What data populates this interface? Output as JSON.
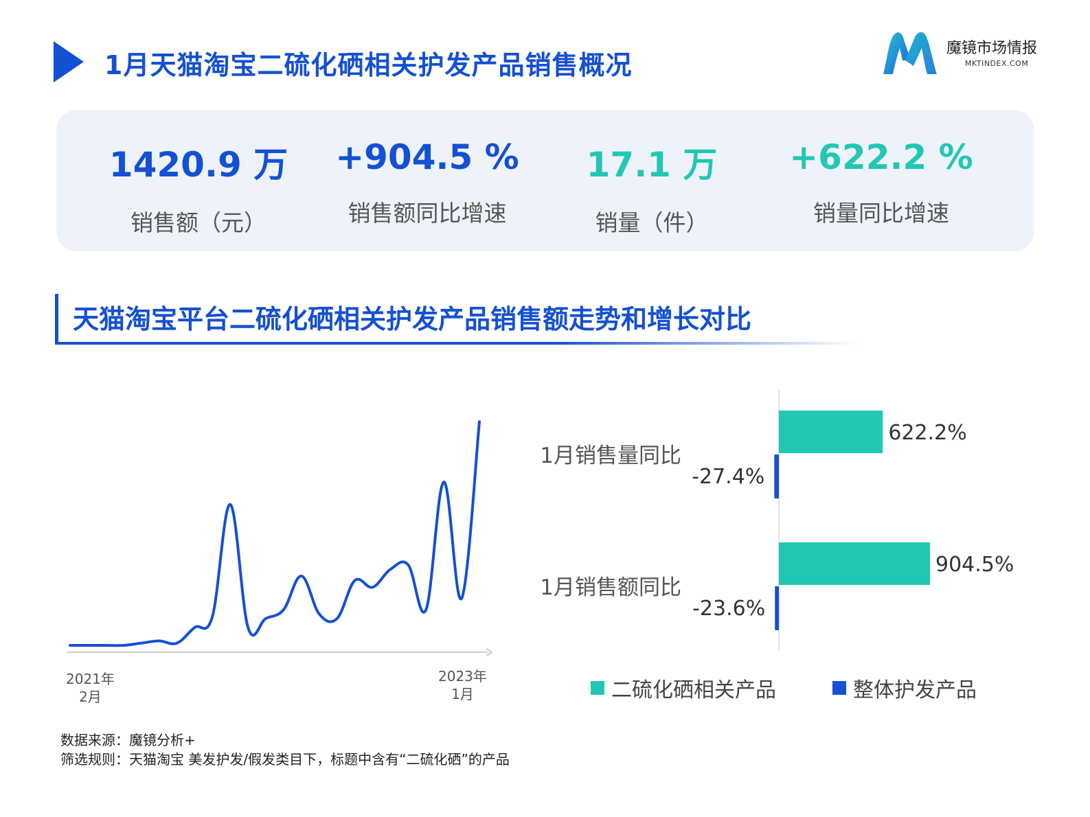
{
  "header": {
    "title": "1月天猫淘宝二硫化硒相关护发产品销售概况",
    "brand_name": "魔镜市场情报",
    "brand_domain": "MKTINDEX.COM"
  },
  "kpis": [
    {
      "value": "1420.9 万",
      "label": "销售额（元）",
      "color": "#1450d4"
    },
    {
      "value": "+904.5 %",
      "label": "销售额同比增速",
      "color": "#1450d4"
    },
    {
      "value": "17.1 万",
      "label": "销量（件）",
      "color": "#22c7b4"
    },
    {
      "value": "+622.2 %",
      "label": "销量同比增速",
      "color": "#22c7b4"
    }
  ],
  "section": {
    "title": "天猫淘宝平台二硫化硒相关护发产品销售额走势和增长对比"
  },
  "colors": {
    "primary": "#1450d4",
    "teal": "#22c7b4",
    "kpi_bg": "#eef3fb"
  },
  "chart_data": [
    {
      "type": "line",
      "title": "",
      "x_start_label": [
        "2021年",
        "2月"
      ],
      "x_end_label": [
        "2023年",
        "1月"
      ],
      "x": [
        "2021-02",
        "2021-03",
        "2021-04",
        "2021-05",
        "2021-06",
        "2021-07",
        "2021-08",
        "2021-09",
        "2021-10",
        "2021-11",
        "2021-12",
        "2022-01",
        "2022-02",
        "2022-03",
        "2022-04",
        "2022-05",
        "2022-06",
        "2022-07",
        "2022-08",
        "2022-09",
        "2022-10",
        "2022-11",
        "2022-12",
        "2023-01"
      ],
      "series": [
        {
          "name": "",
          "color": "#1450d4",
          "values": [
            0.0,
            0.0,
            0.0,
            0.0,
            0.1,
            0.2,
            0.1,
            0.8,
            1.3,
            6.3,
            0.8,
            1.2,
            1.6,
            3.1,
            1.4,
            1.2,
            2.9,
            2.6,
            3.4,
            3.6,
            1.6,
            7.3,
            2.1,
            10.0
          ]
        }
      ],
      "ylim": [
        0,
        10.5
      ],
      "grid": false,
      "y_axis_shown": false
    },
    {
      "type": "bar",
      "orientation": "horizontal",
      "categories": [
        "1月销售量同比",
        "1月销售额同比"
      ],
      "series": [
        {
          "name": "二硫化硒相关产品",
          "color": "#22c7b4",
          "values": [
            622.2,
            904.5
          ],
          "labels": [
            "622.2%",
            "904.5%"
          ]
        },
        {
          "name": "整体护发产品",
          "color": "#1450d4",
          "values": [
            -27.4,
            -23.6
          ],
          "labels": [
            "-27.4%",
            "-23.6%"
          ]
        }
      ],
      "xlim": [
        -30,
        1000
      ],
      "legend_position": "bottom"
    }
  ],
  "footnotes": {
    "source": "数据来源：魔镜分析+",
    "filter": "筛选规则：天猫淘宝 美发护发/假发类目下，标题中含有“二硫化硒”的产品"
  }
}
